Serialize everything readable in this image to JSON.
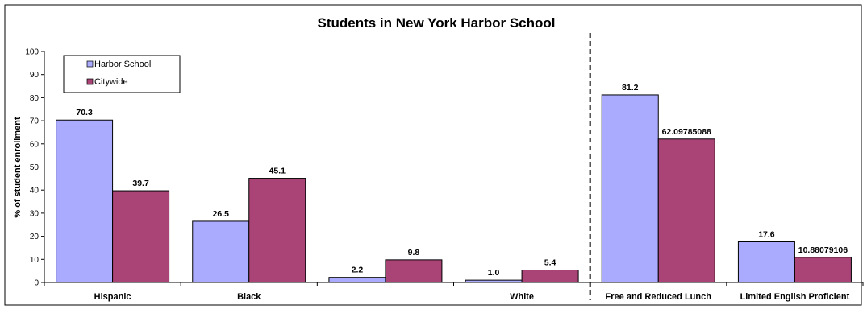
{
  "chart_data": {
    "type": "bar",
    "title": "Students in New York Harbor School",
    "xlabel": "",
    "ylabel": "% of student enrollment",
    "ylim": [
      0,
      100
    ],
    "yticks": [
      0,
      10,
      20,
      30,
      40,
      50,
      60,
      70,
      80,
      90,
      100
    ],
    "categories": [
      "Hispanic",
      "Black",
      "",
      "White",
      "Free and Reduced Lunch",
      "Limited English Proficient"
    ],
    "series": [
      {
        "name": "Harbor School",
        "color": "#aaaaff",
        "values": [
          70.3,
          26.5,
          2.2,
          1.0,
          81.2,
          17.6
        ],
        "labels": [
          "70.3",
          "26.5",
          "2.2",
          "1.0",
          "81.2",
          "17.6"
        ]
      },
      {
        "name": "Citywide",
        "color": "#aa4477",
        "values": [
          39.7,
          45.1,
          9.8,
          5.4,
          62.09785088,
          10.88079106
        ],
        "labels": [
          "39.7",
          "45.1",
          "9.8",
          "5.4",
          "62.09785088",
          "10.88079106"
        ]
      }
    ],
    "legend_position": "top-left",
    "grid": false,
    "divider_after_category": "White"
  }
}
